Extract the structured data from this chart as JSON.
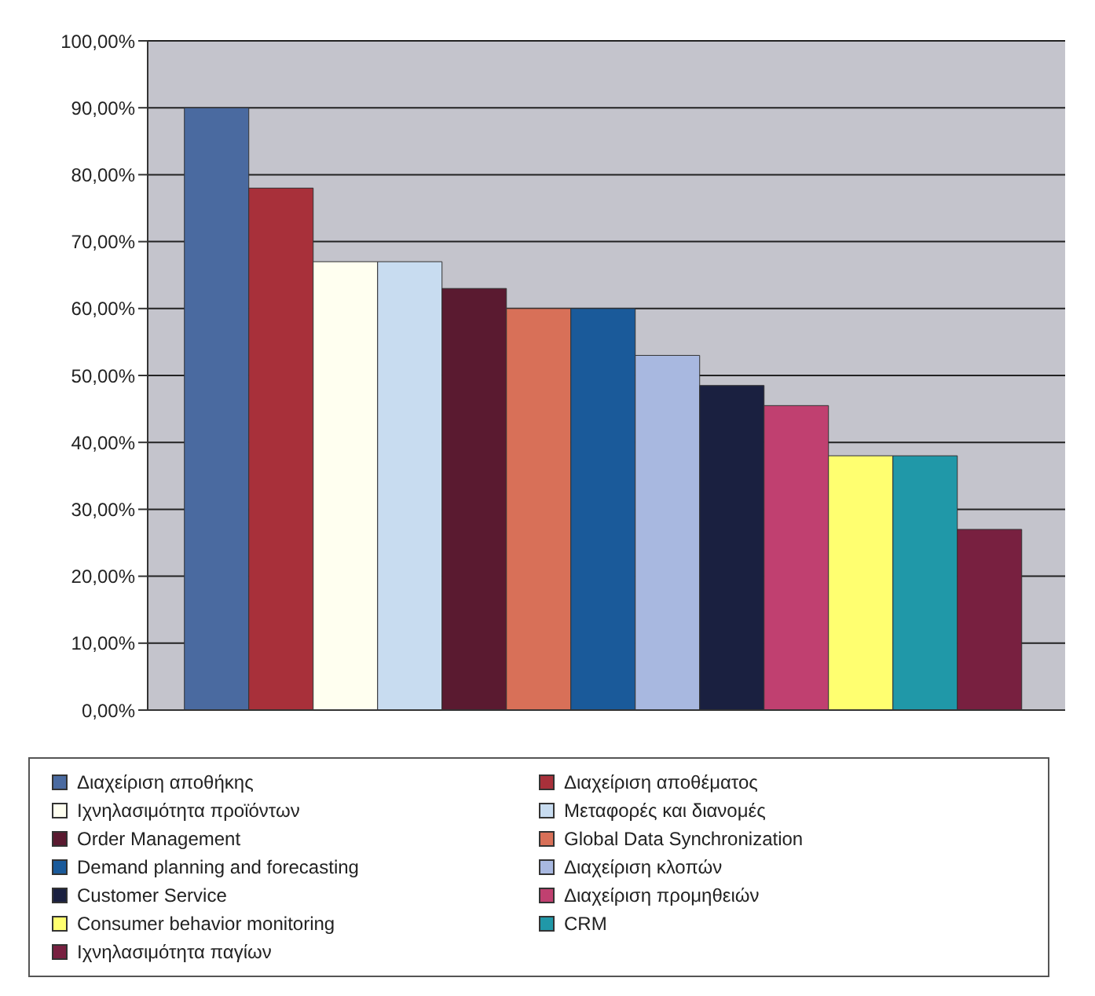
{
  "chart_data": {
    "type": "bar",
    "categories": [
      null
    ],
    "tick_labels": "y",
    "grid": "y",
    "legend": "bottom",
    "ylim": [
      0,
      100
    ],
    "yticks": [
      {
        "value": 0,
        "label": "0,00%"
      },
      {
        "value": 10,
        "label": "10,00%"
      },
      {
        "value": 20,
        "label": "20,00%"
      },
      {
        "value": 30,
        "label": "30,00%"
      },
      {
        "value": 40,
        "label": "40,00%"
      },
      {
        "value": 50,
        "label": "50,00%"
      },
      {
        "value": 60,
        "label": "60,00%"
      },
      {
        "value": 70,
        "label": "70,00%"
      },
      {
        "value": 80,
        "label": "80,00%"
      },
      {
        "value": 90,
        "label": "90,00%"
      },
      {
        "value": 100,
        "label": "100,00%"
      }
    ],
    "series": [
      {
        "name": "Διαχείριση αποθήκης",
        "color": "#4a6aa0",
        "values": [
          90
        ]
      },
      {
        "name": "Διαχείριση αποθέματος",
        "color": "#a8303a",
        "values": [
          78
        ]
      },
      {
        "name": "Ιχνηλασιμότητα προϊόντων",
        "color": "#fffff0",
        "values": [
          67
        ]
      },
      {
        "name": "Μεταφορές και διανομές",
        "color": "#c8dcf0",
        "values": [
          67
        ]
      },
      {
        "name": "Order Management",
        "color": "#5a1a30",
        "values": [
          63
        ]
      },
      {
        "name": "Global Data Synchronization",
        "color": "#d87058",
        "values": [
          60
        ]
      },
      {
        "name": "Demand planning and forecasting",
        "color": "#1a5a9a",
        "values": [
          60
        ]
      },
      {
        "name": "Διαχείριση κλοπών",
        "color": "#a8b8e0",
        "values": [
          53
        ]
      },
      {
        "name": "Customer Service",
        "color": "#1a2040",
        "values": [
          48.5
        ]
      },
      {
        "name": "Διαχείριση προμηθειών",
        "color": "#c04070",
        "values": [
          45.5
        ]
      },
      {
        "name": "Consumer behavior monitoring",
        "color": "#ffff70",
        "values": [
          38
        ]
      },
      {
        "name": "CRM",
        "color": "#2098a8",
        "values": [
          38
        ]
      },
      {
        "name": "Ιχνηλασιμότητα παγίων",
        "color": "#782040",
        "values": [
          27
        ]
      }
    ]
  }
}
